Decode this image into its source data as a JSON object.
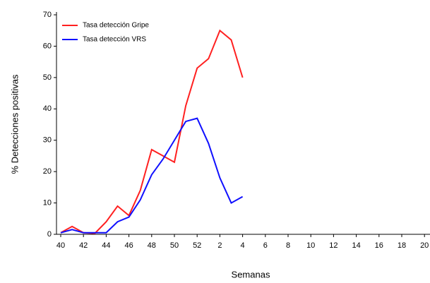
{
  "chart_data": {
    "type": "line",
    "y_label": "% Detecciones positivas",
    "x_label": "Semanas",
    "categories": [
      "40",
      null,
      "42",
      null,
      "44",
      null,
      "46",
      null,
      "48",
      null,
      "50",
      null,
      "52",
      null,
      "2",
      null,
      "4",
      null,
      "6",
      null,
      "8",
      null,
      "10",
      null,
      "12",
      null,
      "14",
      null,
      "16",
      null,
      "18",
      null,
      "20"
    ],
    "series": [
      {
        "name": "Tasa detección Gripe",
        "color": "#ff2020",
        "values": [
          0.5,
          2.5,
          0.5,
          0.3,
          4,
          9,
          6,
          14,
          27,
          25,
          23,
          41,
          53,
          56,
          65,
          62,
          50,
          null,
          null,
          null,
          null,
          null,
          null,
          null,
          null,
          null,
          null,
          null,
          null,
          null,
          null,
          null,
          null
        ]
      },
      {
        "name": "Tasa detección VRS",
        "color": "#1010ff",
        "values": [
          0.5,
          1.5,
          0.5,
          0.5,
          0.5,
          4,
          5.5,
          11,
          19,
          24,
          30,
          36,
          37,
          29,
          18,
          10,
          12,
          null,
          null,
          null,
          null,
          null,
          null,
          null,
          null,
          null,
          null,
          null,
          null,
          null,
          null,
          null,
          null
        ]
      }
    ],
    "ylim": [
      0,
      70
    ],
    "yticks": [
      0,
      10,
      20,
      30,
      40,
      50,
      60,
      70
    ],
    "legend": "upper-left"
  }
}
